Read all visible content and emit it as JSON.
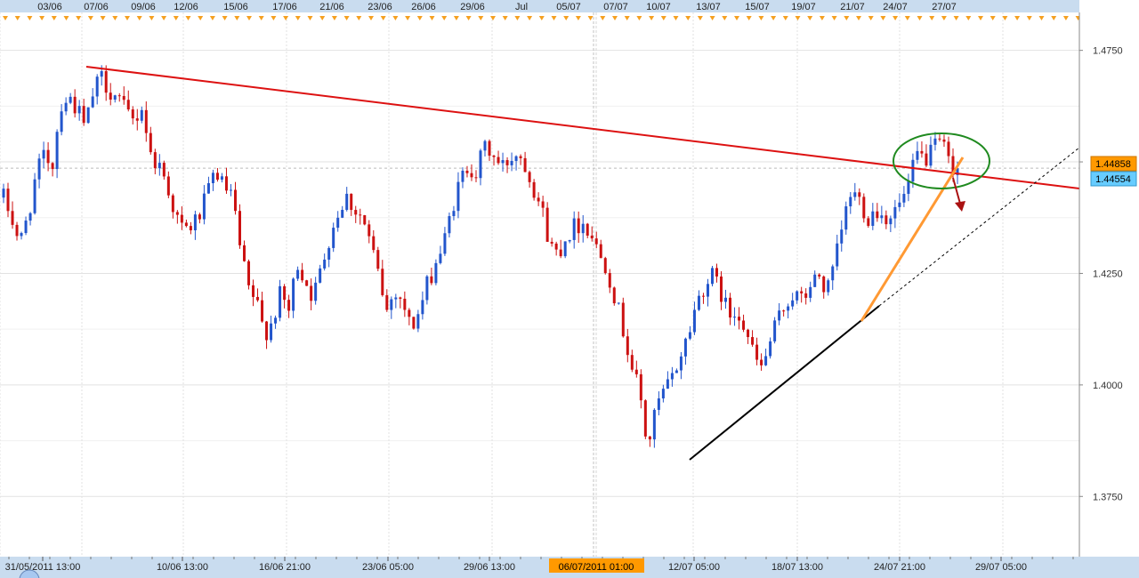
{
  "colors": {
    "bull": "#2255cc",
    "bear": "#cc1111",
    "resistance": "#dd1111",
    "support": "#000000",
    "support_projection": "#000000",
    "steep_trend": "#ff9933",
    "ellipse": "#1f8a1f",
    "arrow": "#aa1111",
    "axis_bg": "#c9dcef",
    "grid": "#e2e2e2",
    "current_price_bg": "#ff9900",
    "alt_price_bg": "#66ccff",
    "crosshair_label_bg": "#ff9900"
  },
  "icons": {
    "top_axis_marker": "orange-down-triangle",
    "corner_marker": "blue-circle"
  },
  "chart_data": {
    "type": "candlestick",
    "title": "",
    "xlabel": "",
    "ylabel": "",
    "ylim": [
      1.3615,
      1.4835
    ],
    "y_ticks": [
      "1.4750",
      "1.4500",
      "1.4250",
      "1.4000",
      "1.3750"
    ],
    "x_ticks_bottom": [
      "31/05/2011 13:00",
      "10/06 13:00",
      "16/06 21:00",
      "23/06 05:00",
      "29/06 13:00",
      "12/07 05:00",
      "18/07 13:00",
      "24/07 21:00",
      "29/07 05:00"
    ],
    "x_ticks_top": [
      "03/06",
      "07/06",
      "09/06",
      "12/06",
      "15/06",
      "17/06",
      "21/06",
      "23/06",
      "26/06",
      "29/06",
      "Jul",
      "05/07",
      "07/07",
      "10/07",
      "13/07",
      "15/07",
      "19/07",
      "21/07",
      "24/07",
      "27/07"
    ],
    "crosshair_time_label": "06/07/2011 01:00",
    "current_price_label": "1.44858",
    "alt_price_label": "1.44554",
    "current_price": 1.44858,
    "alt_price": 1.44554,
    "grid": true,
    "price_path": [
      1.442,
      1.4375,
      1.4315,
      1.438,
      1.447,
      1.4515,
      1.4495,
      1.463,
      1.4645,
      1.462,
      1.4575,
      1.4655,
      1.469,
      1.466,
      1.4645,
      1.461,
      1.459,
      1.4625,
      1.4515,
      1.4495,
      1.4455,
      1.4385,
      1.4345,
      1.4355,
      1.438,
      1.4425,
      1.4485,
      1.444,
      1.4425,
      1.4305,
      1.4215,
      1.4185,
      1.4115,
      1.4145,
      1.4205,
      1.4165,
      1.4275,
      1.4235,
      1.4195,
      1.4265,
      1.4335,
      1.4385,
      1.4425,
      1.4395,
      1.4375,
      1.4315,
      1.4245,
      1.4165,
      1.4215,
      1.4185,
      1.4125,
      1.4165,
      1.4225,
      1.4275,
      1.4315,
      1.4395,
      1.4455,
      1.4495,
      1.4475,
      1.4535,
      1.4515,
      1.4485,
      1.4505,
      1.4525,
      1.4495,
      1.4445,
      1.4395,
      1.4315,
      1.4295,
      1.4335,
      1.4355,
      1.4365,
      1.4345,
      1.4295,
      1.4265,
      1.4195,
      1.4125,
      1.4045,
      1.3985,
      1.3855,
      1.3945,
      1.3985,
      1.4015,
      1.4065,
      1.4115,
      1.4185,
      1.4225,
      1.4245,
      1.4205,
      1.4155,
      1.4175,
      1.4125,
      1.4065,
      1.4035,
      1.4095,
      1.4145,
      1.4185,
      1.4205,
      1.4185,
      1.4225,
      1.4245,
      1.4205,
      1.4275,
      1.4365,
      1.4435,
      1.4415,
      1.4375,
      1.4395,
      1.4375,
      1.4385,
      1.4405,
      1.4445,
      1.4515,
      1.4505,
      1.4525,
      1.4545,
      1.4495,
      1.44858
    ]
  }
}
